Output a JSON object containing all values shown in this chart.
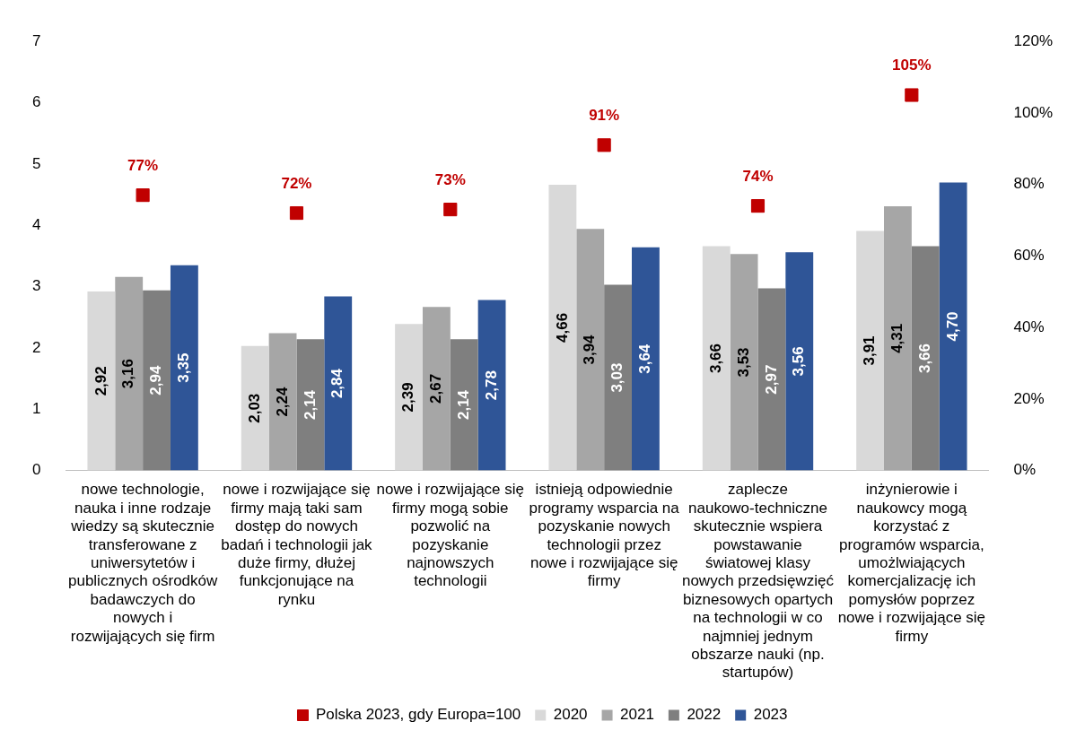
{
  "chart_data": {
    "type": "bar",
    "categories": [
      "nowe technologie, nauka i inne rodzaje wiedzy są skutecznie transferowane z uniwersytetów i publicznych ośrodków badawczych do nowych i rozwijających się firm",
      "nowe i rozwijające się firmy mają taki sam dostęp do nowych badań i technologii jak duże firmy, dłużej funkcjonujące na rynku",
      "nowe i rozwijające się firmy mogą sobie pozwolić na pozyskanie najnowszych technologii",
      "istnieją odpowiednie programy wsparcia na pozyskanie nowych technologii przez nowe i rozwijające się firmy",
      "zaplecze naukowo-techniczne skutecznie wspiera powstawanie światowej klasy nowych przedsięwzięć biznesowych opartych na technologii w co najmniej jednym obszarze nauki (np. startupów)",
      "inżynierowie i naukowcy mogą korzystać z programów wsparcia, umożlwiających komercjalizację ich pomysłów poprzez nowe i rozwijające się firmy"
    ],
    "series": [
      {
        "name": "2020",
        "color": "#d9d9d9",
        "values": [
          2.92,
          2.03,
          2.39,
          4.66,
          3.66,
          3.91
        ],
        "value_labels": [
          "2,92",
          "2,03",
          "2,39",
          "4,66",
          "3,66",
          "3,91"
        ]
      },
      {
        "name": "2021",
        "color": "#a6a6a6",
        "values": [
          3.16,
          2.24,
          2.67,
          3.94,
          3.53,
          4.31
        ],
        "value_labels": [
          "3,16",
          "2,24",
          "2,67",
          "3,94",
          "3,53",
          "4,31"
        ]
      },
      {
        "name": "2022",
        "color": "#7f7f7f",
        "values": [
          2.94,
          2.14,
          2.14,
          3.03,
          2.97,
          3.66
        ],
        "value_labels": [
          "2,94",
          "2,14",
          "2,14",
          "3,03",
          "2,97",
          "3,66"
        ]
      },
      {
        "name": "2023",
        "color": "#2f5597",
        "values": [
          3.35,
          2.84,
          2.78,
          3.64,
          3.56,
          4.7
        ],
        "value_labels": [
          "3,35",
          "2,84",
          "2,78",
          "3,64",
          "3,56",
          "4,70"
        ]
      },
      {
        "name": "Polska 2023, gdy Europa=100",
        "type": "scatter",
        "axis": "y2",
        "marker": "square",
        "color": "#c00000",
        "values": [
          77,
          72,
          73,
          91,
          74,
          105
        ],
        "value_labels": [
          "77%",
          "72%",
          "73%",
          "91%",
          "74%",
          "105%"
        ]
      }
    ],
    "ylim": [
      0,
      7
    ],
    "yticks": [
      0,
      1,
      2,
      3,
      4,
      5,
      6,
      7
    ],
    "y2lim": [
      0,
      120
    ],
    "y2ticks": [
      {
        "value": 0,
        "label": "0%"
      },
      {
        "value": 20,
        "label": "20%"
      },
      {
        "value": 40,
        "label": "40%"
      },
      {
        "value": 60,
        "label": "60%"
      },
      {
        "value": 80,
        "label": "80%"
      },
      {
        "value": 100,
        "label": "100%"
      },
      {
        "value": 120,
        "label": "120%"
      }
    ],
    "grid": false,
    "legend": "bottom"
  }
}
